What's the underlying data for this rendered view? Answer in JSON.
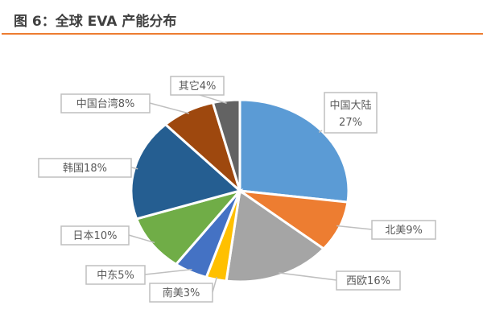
{
  "header": {
    "title": "图 6：全球 EVA 产能分布",
    "rule_color": "#ED7D31"
  },
  "chart_data": {
    "type": "pie",
    "title": "",
    "start": "top",
    "direction": "clockwise",
    "slices": [
      {
        "label": "中国大陆",
        "value": 27,
        "text": "27%",
        "color": "#5B9BD5"
      },
      {
        "label": "北美",
        "value": 9,
        "text": "9%",
        "color": "#ED7D31"
      },
      {
        "label": "西欧",
        "value": 16,
        "text": "16%",
        "color": "#A5A5A5"
      },
      {
        "label": "南美",
        "value": 3,
        "text": "3%",
        "color": "#FFC000"
      },
      {
        "label": "中东",
        "value": 5,
        "text": "5%",
        "color": "#4472C4"
      },
      {
        "label": "日本",
        "value": 10,
        "text": "10%",
        "color": "#70AD47"
      },
      {
        "label": "韩国",
        "value": 18,
        "text": "18%",
        "color": "#255E91"
      },
      {
        "label": "中国台湾",
        "value": 8,
        "text": "8%",
        "color": "#9E480E"
      },
      {
        "label": "其它",
        "value": 4,
        "text": "4%",
        "color": "#636363"
      }
    ]
  }
}
